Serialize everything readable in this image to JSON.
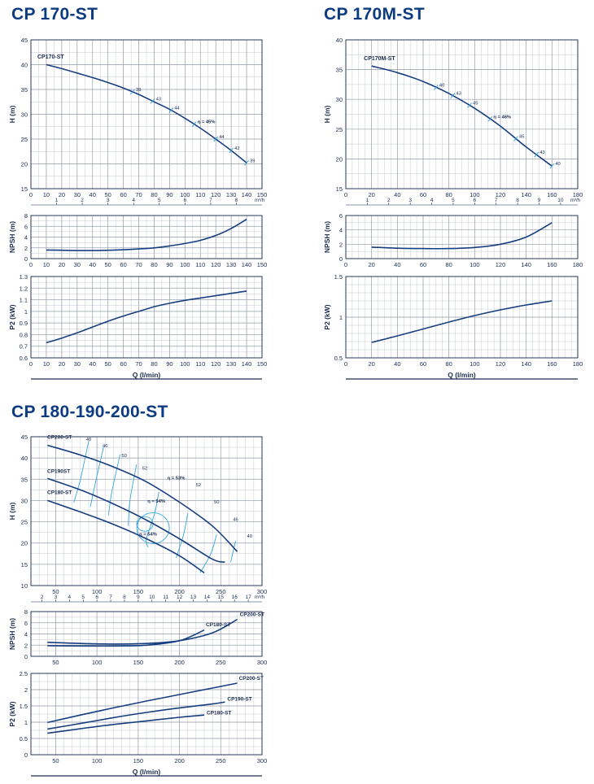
{
  "sections": [
    {
      "title": "CP 170-ST"
    },
    {
      "title": "CP 170M-ST"
    },
    {
      "title": "CP 180-190-200-ST"
    }
  ],
  "colors": {
    "curve": "#173e7f",
    "efficiency": "#35a7df",
    "grid": "#c4c9d2",
    "axis": "#1b2b4f",
    "title": "#0d3b82"
  },
  "chart_data": [
    {
      "id": "cp170_h",
      "type": "line",
      "xlabel": "",
      "ylabel": "H (m)",
      "xlim": [
        0,
        150
      ],
      "ylim": [
        15,
        45
      ],
      "xticks": [
        0,
        10,
        20,
        30,
        40,
        50,
        60,
        70,
        80,
        90,
        100,
        110,
        120,
        130,
        140,
        150
      ],
      "yticks": [
        15,
        20,
        25,
        30,
        35,
        40,
        45
      ],
      "sec_axis": {
        "unit": "m³/h",
        "ticks": [
          1,
          2,
          3,
          4,
          5,
          6,
          7,
          8,
          9
        ],
        "factor": 16.667
      },
      "series": [
        {
          "name": "CP170-ST",
          "x": [
            10,
            20,
            30,
            40,
            50,
            60,
            70,
            80,
            90,
            100,
            110,
            120,
            130,
            140
          ],
          "y": [
            40,
            39.2,
            38.3,
            37.4,
            36.4,
            35.3,
            34,
            32.5,
            31,
            29.2,
            27.2,
            25,
            22.7,
            20.2
          ],
          "markers": [
            {
              "x": 66,
              "label": "39"
            },
            {
              "x": 79,
              "label": "43"
            },
            {
              "x": 91,
              "label": "44"
            },
            {
              "x": 106,
              "label": "η = 45%"
            },
            {
              "x": 120,
              "label": "44"
            },
            {
              "x": 130,
              "label": "42"
            },
            {
              "x": 140,
              "label": "39"
            }
          ]
        }
      ]
    },
    {
      "id": "cp170_npsh",
      "type": "line",
      "xlabel": "",
      "ylabel": "NPSH (m)",
      "xlim": [
        0,
        150
      ],
      "ylim": [
        0,
        8
      ],
      "xticks": [
        0,
        10,
        20,
        30,
        40,
        50,
        60,
        70,
        80,
        90,
        100,
        110,
        120,
        130,
        140,
        150
      ],
      "yticks": [
        0,
        2,
        4,
        6,
        8
      ],
      "series": [
        {
          "name": "",
          "x": [
            10,
            20,
            30,
            40,
            50,
            60,
            70,
            80,
            90,
            100,
            110,
            120,
            130,
            140
          ],
          "y": [
            1.6,
            1.55,
            1.5,
            1.5,
            1.55,
            1.65,
            1.8,
            2.0,
            2.35,
            2.8,
            3.4,
            4.3,
            5.6,
            7.3
          ]
        }
      ]
    },
    {
      "id": "cp170_p2",
      "type": "line",
      "xlabel": "Q (l/min)",
      "ylabel": "P2 (kW)",
      "xlim": [
        0,
        150
      ],
      "ylim": [
        0.6,
        1.3
      ],
      "xticks": [
        0,
        10,
        20,
        30,
        40,
        50,
        60,
        70,
        80,
        90,
        100,
        110,
        120,
        130,
        140,
        150
      ],
      "yticks": [
        0.6,
        0.7,
        0.8,
        0.9,
        1,
        1.1,
        1.2,
        1.3
      ],
      "series": [
        {
          "name": "",
          "x": [
            10,
            20,
            30,
            40,
            50,
            60,
            70,
            80,
            90,
            100,
            110,
            120,
            130,
            140
          ],
          "y": [
            0.73,
            0.77,
            0.815,
            0.865,
            0.915,
            0.96,
            1.0,
            1.04,
            1.07,
            1.095,
            1.115,
            1.135,
            1.155,
            1.175
          ]
        }
      ]
    },
    {
      "id": "cp170m_h",
      "type": "line",
      "xlabel": "",
      "ylabel": "H (m)",
      "xlim": [
        0,
        180
      ],
      "ylim": [
        15,
        40
      ],
      "xticks": [
        0,
        20,
        40,
        60,
        80,
        100,
        120,
        140,
        160,
        180
      ],
      "yticks": [
        15,
        20,
        25,
        30,
        35,
        40
      ],
      "sec_axis": {
        "unit": "m³/h",
        "ticks": [
          1,
          2,
          3,
          4,
          5,
          6,
          7,
          8,
          9,
          10
        ],
        "factor": 16.667
      },
      "series": [
        {
          "name": "CP170M-ST",
          "x": [
            20,
            40,
            60,
            80,
            100,
            120,
            140,
            160
          ],
          "y": [
            35.6,
            34.5,
            33,
            31,
            28.5,
            25.5,
            22,
            18.8
          ],
          "markers": [
            {
              "x": 70,
              "label": "40"
            },
            {
              "x": 83,
              "label": "43"
            },
            {
              "x": 96,
              "label": "45"
            },
            {
              "x": 112,
              "label": "η = 46%"
            },
            {
              "x": 132,
              "label": "45"
            },
            {
              "x": 148,
              "label": "43"
            },
            {
              "x": 160,
              "label": "40"
            }
          ]
        }
      ]
    },
    {
      "id": "cp170m_npsh",
      "type": "line",
      "xlabel": "",
      "ylabel": "NPSH (m)",
      "xlim": [
        0,
        180
      ],
      "ylim": [
        0,
        6
      ],
      "xticks": [
        0,
        20,
        40,
        60,
        80,
        100,
        120,
        140,
        160,
        180
      ],
      "yticks": [
        0,
        2,
        4,
        6
      ],
      "series": [
        {
          "name": "",
          "x": [
            20,
            40,
            60,
            80,
            100,
            120,
            140,
            160
          ],
          "y": [
            1.6,
            1.45,
            1.4,
            1.4,
            1.55,
            2.0,
            3.0,
            5.0
          ]
        }
      ]
    },
    {
      "id": "cp170m_p2",
      "type": "line",
      "xlabel": "Q (l/min)",
      "ylabel": "P2 (kW)",
      "xlim": [
        0,
        180
      ],
      "ylim": [
        0.5,
        1.5
      ],
      "xticks": [
        0,
        20,
        40,
        60,
        80,
        100,
        120,
        140,
        160,
        180
      ],
      "yticks": [
        0.5,
        1,
        1.5
      ],
      "series": [
        {
          "name": "",
          "x": [
            20,
            40,
            60,
            80,
            100,
            120,
            140,
            160
          ],
          "y": [
            0.69,
            0.77,
            0.855,
            0.94,
            1.02,
            1.09,
            1.15,
            1.2
          ]
        }
      ]
    },
    {
      "id": "cp180_h",
      "type": "line",
      "xlabel": "",
      "ylabel": "H (m)",
      "xlim": [
        20,
        300
      ],
      "ylim": [
        10,
        45
      ],
      "xticks": [
        50,
        100,
        150,
        200,
        250,
        300
      ],
      "yticks": [
        10,
        15,
        20,
        25,
        30,
        35,
        40,
        45
      ],
      "sec_axis": {
        "unit": "m³/h",
        "ticks": [
          2,
          3,
          4,
          5,
          6,
          7,
          8,
          9,
          10,
          11,
          12,
          13,
          14,
          15,
          16,
          17
        ],
        "factor": 16.667
      },
      "series": [
        {
          "name": "CP200-ST",
          "x": [
            40,
            80,
            120,
            160,
            200,
            240,
            270
          ],
          "y": [
            43,
            40.7,
            37.9,
            34.4,
            29.6,
            24,
            18
          ]
        },
        {
          "name": "CP190ST",
          "x": [
            40,
            80,
            120,
            160,
            200,
            240,
            255
          ],
          "y": [
            35.2,
            32.5,
            29.2,
            25.4,
            21,
            16.2,
            15.5
          ]
        },
        {
          "name": "CP180-ST",
          "x": [
            40,
            80,
            120,
            160,
            200,
            230
          ],
          "y": [
            30,
            27.3,
            24.4,
            21,
            17,
            13
          ]
        }
      ],
      "efficiency_labels": [
        "40",
        "46",
        "50",
        "52",
        "η = 53%",
        "52",
        "50",
        "46",
        "40",
        "η = 54%",
        "η = 54%"
      ]
    },
    {
      "id": "cp180_npsh",
      "type": "line",
      "xlabel": "",
      "ylabel": "NPSH (m)",
      "xlim": [
        20,
        300
      ],
      "ylim": [
        0,
        8
      ],
      "xticks": [
        50,
        100,
        150,
        200,
        250,
        300
      ],
      "yticks": [
        0,
        2,
        4,
        6,
        8
      ],
      "series": [
        {
          "name": "CP200-ST",
          "x": [
            40,
            80,
            120,
            160,
            200,
            240,
            270
          ],
          "y": [
            2.5,
            2.3,
            2.2,
            2.3,
            2.8,
            4.2,
            6.6
          ]
        },
        {
          "name": "CP180-ST",
          "x": [
            40,
            80,
            120,
            160,
            200,
            230
          ],
          "y": [
            1.9,
            1.85,
            1.85,
            2.0,
            2.8,
            4.7
          ]
        }
      ]
    },
    {
      "id": "cp180_p2",
      "type": "line",
      "xlabel": "Q (l/min)",
      "ylabel": "P2 (kW)",
      "xlim": [
        20,
        300
      ],
      "ylim": [
        0,
        2.5
      ],
      "xticks": [
        50,
        100,
        150,
        200,
        250,
        300
      ],
      "yticks": [
        0,
        0.5,
        1,
        1.5,
        2,
        2.5
      ],
      "series": [
        {
          "name": "CP200-ST",
          "x": [
            40,
            80,
            120,
            160,
            200,
            240,
            270
          ],
          "y": [
            0.99,
            1.22,
            1.44,
            1.65,
            1.85,
            2.05,
            2.2
          ]
        },
        {
          "name": "CP190-ST",
          "x": [
            40,
            80,
            120,
            160,
            200,
            240,
            255
          ],
          "y": [
            0.79,
            0.96,
            1.14,
            1.3,
            1.44,
            1.56,
            1.62
          ]
        },
        {
          "name": "CP180-ST",
          "x": [
            40,
            80,
            120,
            160,
            200,
            230
          ],
          "y": [
            0.66,
            0.8,
            0.93,
            1.04,
            1.15,
            1.22
          ]
        }
      ]
    }
  ]
}
